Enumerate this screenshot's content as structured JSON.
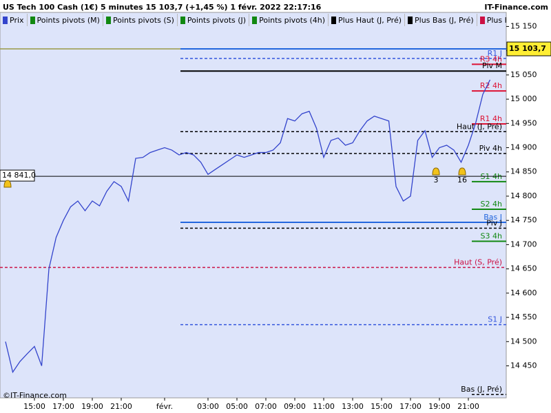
{
  "header": {
    "title": "US Tech 100 Cash (1€) 5 minutes 15 103,7 (+1,45 %) 1 févr. 2022 22:17:16",
    "site": "IT-Finance.com"
  },
  "legend": [
    {
      "name": "Prix",
      "color": "#3344cc"
    },
    {
      "name": "Points pivots (M)",
      "color": "#118811"
    },
    {
      "name": "Points pivots (S)",
      "color": "#118811"
    },
    {
      "name": "Points pivots (J)",
      "color": "#118811"
    },
    {
      "name": "Points pivots (4h)",
      "color": "#118811"
    },
    {
      "name": "Plus Haut (J, Pré)",
      "color": "#000000"
    },
    {
      "name": "Plus Bas (J, Pré)",
      "color": "#000000"
    },
    {
      "name": "Plus Haut (S, Pré)",
      "color": "#cc1144"
    }
  ],
  "footer": "©IT-Finance.com",
  "chart_data": {
    "type": "line",
    "categories": [
      null,
      null,
      null,
      null,
      "15:00",
      null,
      null,
      null,
      "17:00",
      null,
      null,
      null,
      "19:00",
      null,
      null,
      null,
      "21:00",
      null,
      null,
      null,
      null,
      null,
      "févr.",
      null,
      null,
      null,
      null,
      null,
      "03:00",
      null,
      null,
      null,
      "05:00",
      null,
      null,
      null,
      "07:00",
      null,
      null,
      null,
      "09:00",
      null,
      null,
      null,
      "11:00",
      null,
      null,
      null,
      "13:00",
      null,
      null,
      null,
      "15:00",
      null,
      null,
      null,
      "17:00",
      null,
      null,
      null,
      "19:00",
      null,
      null,
      null,
      "21:00",
      null,
      null,
      null
    ],
    "series": [
      {
        "name": "Prix",
        "color": "#3344cc",
        "values": [
          14500,
          14437,
          14459,
          14475,
          14490,
          14450,
          14650,
          14715,
          14750,
          14778,
          14790,
          14770,
          14790,
          14780,
          14810,
          14830,
          14820,
          14790,
          14878,
          14880,
          14890,
          14895,
          14900,
          14895,
          14885,
          14890,
          14885,
          14870,
          14845,
          14855,
          14865,
          14875,
          14885,
          14880,
          14885,
          14890,
          14890,
          14895,
          14910,
          14960,
          14955,
          14970,
          14975,
          14940,
          14880,
          14915,
          14920,
          14905,
          14910,
          14935,
          14955,
          14965,
          14960,
          14955,
          14820,
          14790,
          14800,
          14915,
          14935,
          14880,
          14900,
          14905,
          14895,
          14870,
          14905,
          14950,
          15010,
          15040
        ]
      }
    ],
    "ylim": [
      14384,
      15179
    ],
    "yticks": [
      {
        "value": 14450,
        "label": "14 450"
      },
      {
        "value": 14500,
        "label": "14 500"
      },
      {
        "value": 14550,
        "label": "14 550"
      },
      {
        "value": 14600,
        "label": "14 600"
      },
      {
        "value": 14650,
        "label": "14 650"
      },
      {
        "value": 14700,
        "label": "14 700"
      },
      {
        "value": 14750,
        "label": "14 750"
      },
      {
        "value": 14800,
        "label": "14 800"
      },
      {
        "value": 14850,
        "label": "14 850"
      },
      {
        "value": 14900,
        "label": "14 900"
      },
      {
        "value": 14950,
        "label": "14 950"
      },
      {
        "value": 15000,
        "label": "15 000"
      },
      {
        "value": 15050,
        "label": "15 050"
      },
      {
        "value": 15100,
        "label": "15 100"
      },
      {
        "value": 15150,
        "label": "15 150"
      }
    ],
    "last_price": 15103.7,
    "last_price_label": "15 103,7",
    "marker_price": 14841,
    "marker_price_label": "14 841,0",
    "levels": [
      {
        "name": "R1 J",
        "value": 15084,
        "color": "#3355dd",
        "dash": true,
        "span": "long"
      },
      {
        "name": "R3 4h",
        "value": 15072,
        "color": "#dd1133",
        "dash": false,
        "span": "short"
      },
      {
        "name": "Piv M",
        "value": 15058,
        "color": "#000000",
        "dash": false,
        "span": "long"
      },
      {
        "name": "R2 4h",
        "value": 15017,
        "color": "#dd1133",
        "dash": false,
        "span": "short"
      },
      {
        "name": "R1 4h",
        "value": 14949,
        "color": "#dd1133",
        "dash": false,
        "span": "short"
      },
      {
        "name": "Haut (J, Pré)",
        "value": 14933,
        "color": "#000000",
        "dash": true,
        "span": "long"
      },
      {
        "name": "Piv 4h",
        "value": 14888,
        "color": "#000000",
        "dash": true,
        "span": "long"
      },
      {
        "name": "S1 4h",
        "value": 14830,
        "color": "#118811",
        "dash": false,
        "span": "short"
      },
      {
        "name": "S2 4h",
        "value": 14773,
        "color": "#118811",
        "dash": false,
        "span": "short"
      },
      {
        "name": "Bas J",
        "value": 14746,
        "color": "#2266dd",
        "dash": false,
        "span": "long"
      },
      {
        "name": "Piv J",
        "value": 14734,
        "color": "#000000",
        "dash": true,
        "span": "long"
      },
      {
        "name": "S3 4h",
        "value": 14707,
        "color": "#118811",
        "dash": false,
        "span": "short"
      },
      {
        "name": "Haut (S, Pré)",
        "value": 14653,
        "color": "#cc1144",
        "dash": true,
        "span": "full"
      },
      {
        "name": "S1 J",
        "value": 14535,
        "color": "#3355dd",
        "dash": true,
        "span": "long"
      },
      {
        "name": "Bas (J, Pré)",
        "value": 14391,
        "color": "#000000",
        "dash": true,
        "span": "short"
      }
    ],
    "alerts": [
      "3",
      "16"
    ]
  }
}
